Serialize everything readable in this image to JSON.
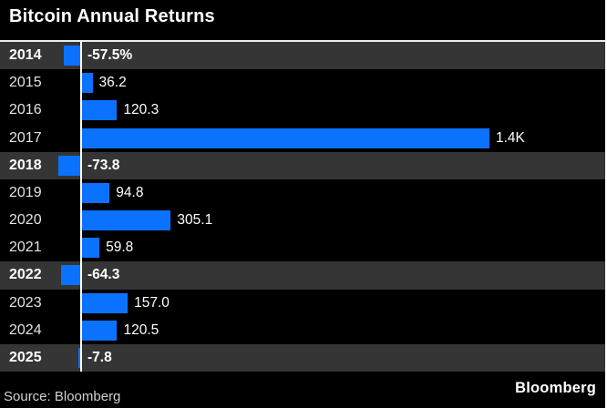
{
  "title": "Bitcoin Annual Returns",
  "footer": {
    "source": "Source: Bloomberg",
    "brand": "Bloomberg"
  },
  "colors": {
    "background": "#000000",
    "bar": "#0b72ff",
    "highlight_row": "#353535",
    "axis": "#ffffff",
    "title_text": "#ffffff",
    "year_text": "#e3e3e3",
    "separator": "#ededed"
  },
  "chart_data": {
    "type": "bar",
    "orientation": "horizontal",
    "title": "Bitcoin Annual Returns",
    "unit": "%",
    "categories": [
      "2014",
      "2015",
      "2016",
      "2017",
      "2018",
      "2019",
      "2020",
      "2021",
      "2022",
      "2023",
      "2024",
      "2025"
    ],
    "values": [
      -57.5,
      36.2,
      120.3,
      1400,
      -73.8,
      94.8,
      305.1,
      59.8,
      -64.3,
      157.0,
      120.5,
      -7.8
    ],
    "value_labels": [
      "-57.5%",
      "36.2",
      "120.3",
      "1.4K",
      "-73.8",
      "94.8",
      "305.1",
      "59.8",
      "-64.3",
      "157.0",
      "120.5",
      "-7.8"
    ],
    "highlighted_categories": [
      "2014",
      "2018",
      "2022",
      "2025"
    ],
    "xlim": [
      -280,
      1810
    ],
    "grid": false,
    "legend": false
  }
}
